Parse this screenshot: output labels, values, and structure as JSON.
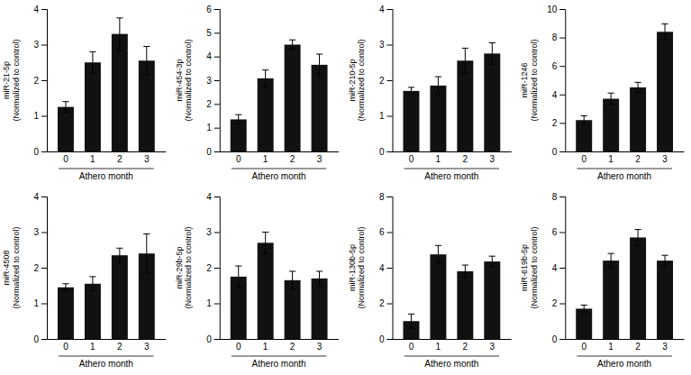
{
  "chart_data": [
    {
      "type": "bar",
      "categories": [
        "0",
        "1",
        "2",
        "3"
      ],
      "values": [
        1.25,
        2.5,
        3.3,
        2.55
      ],
      "errors": [
        0.15,
        0.3,
        0.45,
        0.4
      ],
      "color": "#111111",
      "ylim": [
        0,
        4
      ],
      "yticks": [
        0,
        1,
        2,
        3,
        4
      ],
      "ylabel": "miR-21-5p\n(Normalized to control)",
      "xlabel": "Athero month"
    },
    {
      "type": "bar",
      "categories": [
        "0",
        "1",
        "2",
        "3"
      ],
      "values": [
        1.35,
        3.08,
        4.5,
        3.65
      ],
      "errors": [
        0.2,
        0.35,
        0.2,
        0.45
      ],
      "color": "#111111",
      "ylim": [
        0,
        6
      ],
      "yticks": [
        0,
        1,
        2,
        3,
        4,
        5,
        6
      ],
      "ylabel": "miR-454-3p\n(Normalized to control)",
      "xlabel": "Athero month"
    },
    {
      "type": "bar",
      "categories": [
        "0",
        "1",
        "2",
        "3"
      ],
      "values": [
        1.7,
        1.85,
        2.55,
        2.75
      ],
      "errors": [
        0.1,
        0.25,
        0.35,
        0.3
      ],
      "color": "#111111",
      "ylim": [
        0,
        4
      ],
      "yticks": [
        0,
        1,
        2,
        3,
        4
      ],
      "ylabel": "miR-210-5p\n(Normalized to control)",
      "xlabel": "Athero month"
    },
    {
      "type": "bar",
      "categories": [
        "0",
        "1",
        "2",
        "3"
      ],
      "values": [
        2.2,
        3.7,
        4.5,
        8.4
      ],
      "errors": [
        0.3,
        0.4,
        0.35,
        0.55
      ],
      "color": "#111111",
      "ylim": [
        0,
        10
      ],
      "yticks": [
        0,
        2,
        4,
        6,
        8,
        10
      ],
      "ylabel": "miR-1246\n(Normalized to control)",
      "xlabel": "Athero month"
    },
    {
      "type": "bar",
      "categories": [
        "0",
        "1",
        "2",
        "3"
      ],
      "values": [
        1.45,
        1.55,
        2.35,
        2.4
      ],
      "errors": [
        0.1,
        0.2,
        0.2,
        0.55
      ],
      "color": "#111111",
      "ylim": [
        0,
        4
      ],
      "yticks": [
        0,
        1,
        2,
        3,
        4
      ],
      "ylabel": "miR-4508\n(Normalized to control)",
      "xlabel": "Athero month"
    },
    {
      "type": "bar",
      "categories": [
        "0",
        "1",
        "2",
        "3"
      ],
      "values": [
        1.75,
        2.7,
        1.65,
        1.7
      ],
      "errors": [
        0.3,
        0.3,
        0.25,
        0.2
      ],
      "color": "#111111",
      "ylim": [
        0,
        4
      ],
      "yticks": [
        0,
        1,
        2,
        3,
        4
      ],
      "ylabel": "miR-29b-5p\n(Normalized to control)",
      "xlabel": "Athero month"
    },
    {
      "type": "bar",
      "categories": [
        "0",
        "1",
        "2",
        "3"
      ],
      "values": [
        1.0,
        4.75,
        3.8,
        4.35
      ],
      "errors": [
        0.4,
        0.5,
        0.35,
        0.3
      ],
      "color": "#111111",
      "ylim": [
        0,
        8
      ],
      "yticks": [
        0,
        2,
        4,
        6,
        8
      ],
      "ylabel": "miR-130b-5p\n(Normalized to control)",
      "xlabel": "Athero month"
    },
    {
      "type": "bar",
      "categories": [
        "0",
        "1",
        "2",
        "3"
      ],
      "values": [
        1.7,
        4.4,
        5.7,
        4.4
      ],
      "errors": [
        0.2,
        0.4,
        0.45,
        0.3
      ],
      "color": "#111111",
      "ylim": [
        0,
        8
      ],
      "yticks": [
        0,
        2,
        4,
        6,
        8
      ],
      "ylabel": "miR-619b-5p\n(Normalized to control)",
      "xlabel": "Athero month"
    }
  ]
}
